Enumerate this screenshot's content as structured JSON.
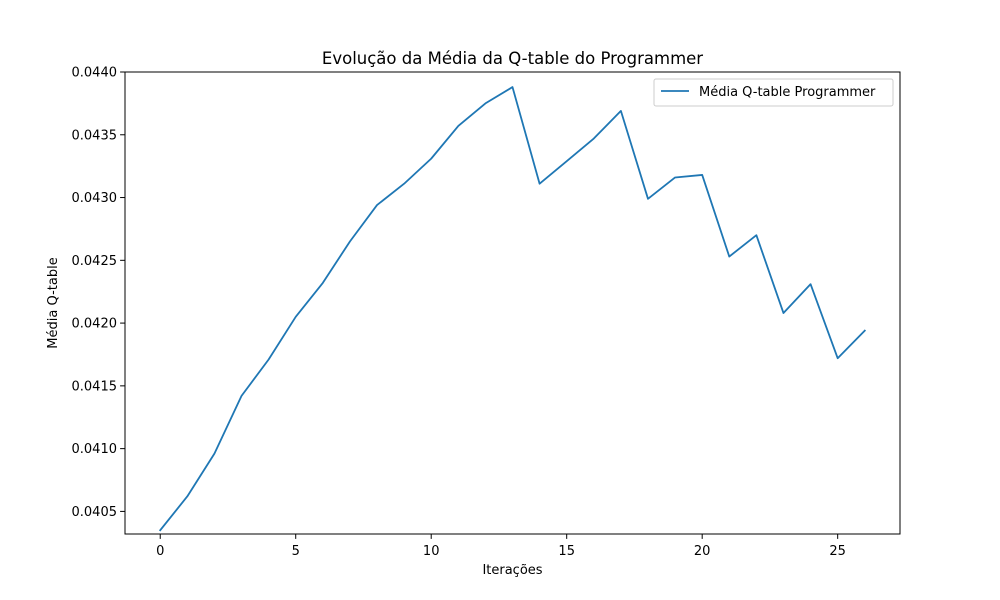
{
  "chart_data": {
    "type": "line",
    "title": "Evolução da Média da Q-table do Programmer",
    "xlabel": "Iterações",
    "ylabel": "Média Q-table",
    "xlim": [
      -1.3,
      27.3
    ],
    "ylim": [
      0.04032,
      0.044
    ],
    "xticks": [
      0,
      5,
      10,
      15,
      20,
      25
    ],
    "yticks": [
      0.0405,
      0.041,
      0.0415,
      0.042,
      0.0425,
      0.043,
      0.0435,
      0.044
    ],
    "ytick_labels": [
      "0.0405",
      "0.0410",
      "0.0415",
      "0.0420",
      "0.0425",
      "0.0430",
      "0.0435",
      "0.0440"
    ],
    "grid": false,
    "legend_position": "upper right",
    "x": [
      0,
      1,
      2,
      3,
      4,
      5,
      6,
      7,
      8,
      9,
      10,
      11,
      12,
      13,
      14,
      15,
      16,
      17,
      18,
      19,
      20,
      21,
      22,
      23,
      24,
      25,
      26
    ],
    "series": [
      {
        "name": "Média Q-table Programmer",
        "color": "#1f77b4",
        "values": [
          0.04035,
          0.04062,
          0.04096,
          0.04142,
          0.04171,
          0.04205,
          0.04232,
          0.04265,
          0.04294,
          0.04311,
          0.04331,
          0.04357,
          0.04375,
          0.04388,
          0.04311,
          0.04329,
          0.04347,
          0.04369,
          0.04299,
          0.04316,
          0.04318,
          0.04253,
          0.0427,
          0.04208,
          0.04231,
          0.04172,
          0.04194
        ]
      }
    ]
  }
}
